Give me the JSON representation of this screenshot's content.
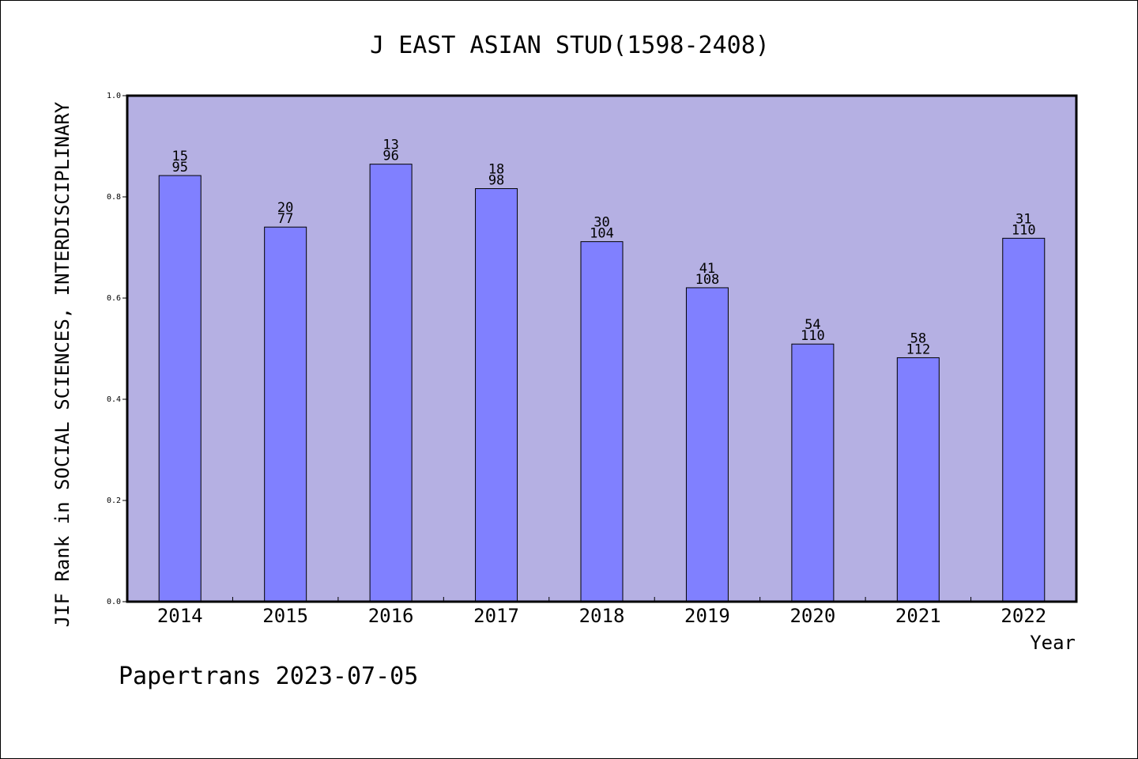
{
  "chart_data": {
    "type": "bar",
    "title": "J EAST ASIAN STUD(1598-2408)",
    "xlabel": "Year",
    "ylabel": "JIF Rank in SOCIAL SCIENCES, INTERDISCIPLINARY",
    "ylim": [
      0.0,
      1.0
    ],
    "yticks": [
      "0.0",
      "0.2",
      "0.4",
      "0.6",
      "0.8",
      "1.0"
    ],
    "categories": [
      "2014",
      "2015",
      "2016",
      "2017",
      "2018",
      "2019",
      "2020",
      "2021",
      "2022"
    ],
    "values": [
      0.8421,
      0.7403,
      0.8646,
      0.8163,
      0.7115,
      0.6204,
      0.5091,
      0.4821,
      0.7182
    ],
    "rank": [
      "15",
      "20",
      "13",
      "18",
      "30",
      "41",
      "54",
      "58",
      "31"
    ],
    "total": [
      "95",
      "77",
      "96",
      "98",
      "104",
      "108",
      "110",
      "112",
      "110"
    ],
    "grid": false,
    "colors": {
      "plot_background": "#b5b0e3",
      "bar_fill": "#8080ff",
      "bar_stroke": "#000000"
    }
  },
  "footer": {
    "note": "Papertrans 2023-07-05"
  }
}
